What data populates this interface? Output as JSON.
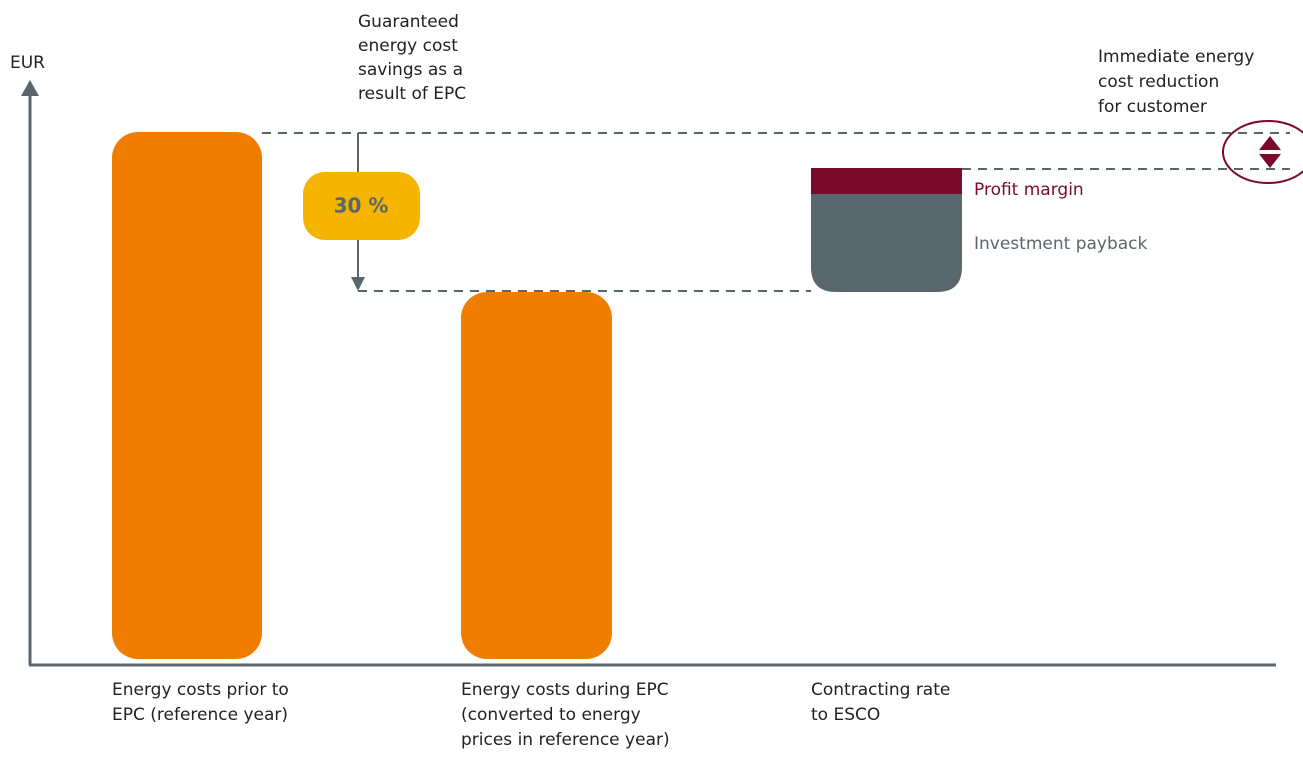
{
  "axis_label": "EUR",
  "savings_label": [
    "Guaranteed",
    "energy cost",
    "savings as a",
    "result of EPC"
  ],
  "savings_badge": "30 %",
  "reduction_label": [
    "Immediate energy",
    "cost reduction",
    "for customer"
  ],
  "profit_margin": "Profit margin",
  "investment_payback": "Investment payback",
  "categories": [
    [
      "Energy costs prior to",
      "EPC (reference year)"
    ],
    [
      "Energy costs during EPC",
      "(converted to energy",
      "prices in reference year)"
    ],
    [
      "Contracting rate",
      "to ESCO"
    ]
  ]
}
